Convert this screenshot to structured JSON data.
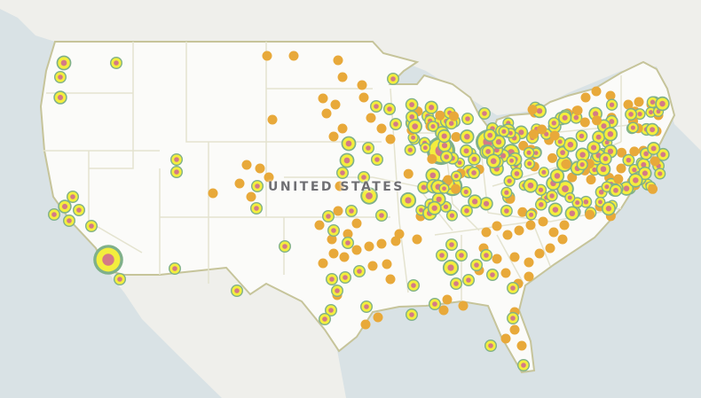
{
  "map": {
    "country_label": "UNITED STATES",
    "colors": {
      "ocean": "#d9e2e5",
      "neighbor_land": "#efefeb",
      "us_land": "#fbfbf9",
      "national_border": "#c6c49a",
      "state_border": "#e4e3cf",
      "marker_orange": "#e8a93a",
      "ring_outer": "#7fb08a",
      "ring_middle": "#f3ee3d",
      "ring_center": "#d47a86"
    },
    "marker_types": [
      "orange-dot",
      "concentric-ring"
    ]
  }
}
